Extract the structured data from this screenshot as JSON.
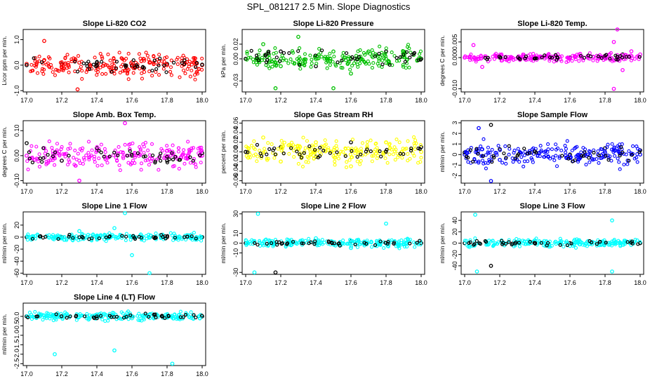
{
  "title": "SPL_081217  2.5 Min. Slope Diagnostics",
  "chart_data": [
    {
      "type": "scatter",
      "title": "Slope Li-820 CO2",
      "ylabel": "Licor ppm per min.",
      "xlim": [
        16.98,
        18.02
      ],
      "ylim": [
        -1.05,
        1.4
      ],
      "xticks": [
        "17.0",
        "17.2",
        "17.4",
        "17.6",
        "17.8",
        "18.0"
      ],
      "yticks": [
        {
          "v": -1,
          "label": "-1.0"
        },
        {
          "v": 0,
          "label": "0.0"
        },
        {
          "v": 1,
          "label": "1.0"
        }
      ],
      "series": [
        {
          "color": "#ff0000",
          "values": [
            [
              17.0,
              0.05
            ],
            [
              17.1,
              0.2
            ],
            [
              17.2,
              -0.1
            ],
            [
              17.3,
              0.1
            ],
            [
              17.4,
              0.0
            ],
            [
              17.5,
              0.15
            ],
            [
              17.6,
              -0.05
            ],
            [
              17.7,
              0.1
            ],
            [
              17.8,
              0.0
            ],
            [
              17.9,
              0.05
            ],
            [
              18.0,
              0.0
            ],
            [
              17.1,
              0.95
            ],
            [
              17.29,
              -0.95
            ]
          ]
        },
        {
          "color": "#000000",
          "values": [
            [
              17.0,
              0.0
            ],
            [
              17.2,
              0.05
            ],
            [
              17.4,
              0.1
            ],
            [
              17.6,
              0.0
            ],
            [
              17.8,
              0.05
            ],
            [
              18.0,
              0.02
            ]
          ]
        }
      ]
    },
    {
      "type": "scatter",
      "title": "Slope Li-820 Pressure",
      "ylabel": "kPa per min.",
      "xlim": [
        16.98,
        18.02
      ],
      "ylim": [
        -0.045,
        0.04
      ],
      "xticks": [
        "17.0",
        "17.2",
        "17.4",
        "17.6",
        "17.8",
        "18.0"
      ],
      "yticks": [
        {
          "v": -0.03,
          "label": "-0.03"
        },
        {
          "v": 0,
          "label": "0.00"
        },
        {
          "v": 0.02,
          "label": "0.02"
        }
      ],
      "series": [
        {
          "color": "#00c000",
          "values": [
            [
              17.0,
              0.0
            ],
            [
              17.1,
              0.02
            ],
            [
              17.2,
              -0.01
            ],
            [
              17.3,
              0.03
            ],
            [
              17.4,
              0.0
            ],
            [
              17.5,
              0.01
            ],
            [
              17.6,
              -0.02
            ],
            [
              17.7,
              0.01
            ],
            [
              17.8,
              0.0
            ],
            [
              17.9,
              0.01
            ],
            [
              18.0,
              0.0
            ],
            [
              17.17,
              -0.04
            ],
            [
              17.5,
              -0.04
            ]
          ]
        },
        {
          "color": "#000000",
          "values": [
            [
              17.0,
              0.0
            ],
            [
              17.2,
              0.01
            ],
            [
              17.4,
              -0.01
            ],
            [
              17.6,
              0.0
            ],
            [
              17.8,
              0.01
            ],
            [
              18.0,
              0.0
            ]
          ]
        }
      ]
    },
    {
      "type": "scatter",
      "title": "Slope Li-820 Temp.",
      "ylabel": "degrees C per min.",
      "xlim": [
        16.98,
        18.02
      ],
      "ylim": [
        -0.011,
        0.009
      ],
      "xticks": [
        "17.0",
        "17.2",
        "17.4",
        "17.6",
        "17.8",
        "18.0"
      ],
      "yticks": [
        {
          "v": -0.01,
          "label": "-0.010"
        },
        {
          "v": 0,
          "label": "0.000"
        },
        {
          "v": 0.005,
          "label": "0.005"
        }
      ],
      "series": [
        {
          "color": "#ff00ff",
          "values": [
            [
              17.0,
              0.0
            ],
            [
              17.05,
              0.004
            ],
            [
              17.1,
              -0.003
            ],
            [
              17.5,
              0.0
            ],
            [
              17.85,
              0.005
            ],
            [
              17.9,
              -0.004
            ],
            [
              17.95,
              0.002
            ],
            [
              18.0,
              0.001
            ],
            [
              17.87,
              0.009
            ],
            [
              17.85,
              -0.01
            ]
          ]
        },
        {
          "color": "#000000",
          "values": [
            [
              17.2,
              0.0
            ],
            [
              17.4,
              0.0
            ],
            [
              17.6,
              0.0
            ],
            [
              17.8,
              0.0
            ],
            [
              17.9,
              0.001
            ]
          ]
        }
      ]
    },
    {
      "type": "scatter",
      "title": "Slope Amb. Box Temp.",
      "ylabel": "degrees C per min.",
      "xlim": [
        16.98,
        18.02
      ],
      "ylim": [
        -0.11,
        0.14
      ],
      "xticks": [
        "17.0",
        "17.2",
        "17.4",
        "17.6",
        "17.8",
        "18.0"
      ],
      "yticks": [
        {
          "v": -0.1,
          "label": "-0.10"
        },
        {
          "v": 0,
          "label": "0.00"
        },
        {
          "v": 0.1,
          "label": "0.10"
        }
      ],
      "series": [
        {
          "color": "#ff00ff",
          "values": [
            [
              17.0,
              0.0
            ],
            [
              17.1,
              0.03
            ],
            [
              17.2,
              -0.02
            ],
            [
              17.4,
              0.02
            ],
            [
              17.6,
              -0.03
            ],
            [
              17.8,
              0.02
            ],
            [
              18.0,
              0.0
            ],
            [
              17.56,
              0.13
            ],
            [
              17.3,
              -0.1
            ]
          ]
        },
        {
          "color": "#000000",
          "values": [
            [
              17.0,
              0.05
            ],
            [
              17.2,
              -0.02
            ],
            [
              17.4,
              0.03
            ],
            [
              17.6,
              0.0
            ],
            [
              17.8,
              -0.02
            ],
            [
              18.0,
              0.01
            ]
          ]
        }
      ]
    },
    {
      "type": "scatter",
      "title": "Slope Gas Stream RH",
      "ylabel": "percent per min.",
      "xlim": [
        16.98,
        18.02
      ],
      "ylim": [
        -0.065,
        0.065
      ],
      "xticks": [
        "17.0",
        "17.2",
        "17.4",
        "17.6",
        "17.8",
        "18.0"
      ],
      "yticks": [
        {
          "v": -0.06,
          "label": "-0.06"
        },
        {
          "v": -0.04,
          "label": "-0.04"
        },
        {
          "v": -0.02,
          "label": "-0.02"
        },
        {
          "v": 0,
          "label": "0.00"
        },
        {
          "v": 0.02,
          "label": "0.02"
        },
        {
          "v": 0.04,
          "label": "0.04"
        },
        {
          "v": 0.06,
          "label": "0.06"
        }
      ],
      "series": [
        {
          "color": "#ffff00",
          "values": [
            [
              17.0,
              0.0
            ],
            [
              17.1,
              0.03
            ],
            [
              17.2,
              -0.02
            ],
            [
              17.4,
              0.02
            ],
            [
              17.6,
              -0.03
            ],
            [
              17.8,
              0.02
            ],
            [
              18.0,
              0.0
            ]
          ]
        },
        {
          "color": "#000000",
          "values": [
            [
              17.0,
              0.0
            ],
            [
              17.2,
              0.01
            ],
            [
              17.4,
              -0.01
            ],
            [
              17.6,
              0.02
            ],
            [
              17.8,
              0.0
            ],
            [
              18.0,
              0.01
            ]
          ]
        }
      ]
    },
    {
      "type": "scatter",
      "title": "Slope Sample Flow",
      "ylabel": "ml/min per min.",
      "xlim": [
        16.98,
        18.02
      ],
      "ylim": [
        -2.7,
        3.2
      ],
      "xticks": [
        "17.0",
        "17.2",
        "17.4",
        "17.6",
        "17.8",
        "18.0"
      ],
      "yticks": [
        {
          "v": -2,
          "label": "-2"
        },
        {
          "v": -1,
          "label": "-1"
        },
        {
          "v": 0,
          "label": "0"
        },
        {
          "v": 1,
          "label": "1"
        },
        {
          "v": 2,
          "label": "2"
        },
        {
          "v": 3,
          "label": "3"
        }
      ],
      "series": [
        {
          "color": "#0000ff",
          "values": [
            [
              17.0,
              0.0
            ],
            [
              17.1,
              0.5
            ],
            [
              17.2,
              -0.5
            ],
            [
              17.4,
              0.3
            ],
            [
              17.6,
              -0.3
            ],
            [
              17.8,
              0.2
            ],
            [
              18.0,
              0.0
            ],
            [
              17.08,
              2.5
            ],
            [
              17.15,
              -2.5
            ]
          ]
        },
        {
          "color": "#000000",
          "values": [
            [
              17.0,
              0.2
            ],
            [
              17.2,
              0.5
            ],
            [
              17.4,
              0.3
            ],
            [
              17.6,
              0.0
            ],
            [
              17.8,
              0.6
            ],
            [
              18.0,
              0.4
            ],
            [
              17.15,
              2.8
            ]
          ]
        }
      ]
    },
    {
      "type": "scatter",
      "title": "Slope Line 1 Flow",
      "ylabel": "ml/min per min.",
      "xlim": [
        16.98,
        18.02
      ],
      "ylim": [
        -62,
        42
      ],
      "xticks": [
        "17.0",
        "17.2",
        "17.4",
        "17.6",
        "17.8",
        "18.0"
      ],
      "yticks": [
        {
          "v": -60,
          "label": "-60"
        },
        {
          "v": -40,
          "label": "-40"
        },
        {
          "v": -20,
          "label": "-20"
        },
        {
          "v": 0,
          "label": "0"
        },
        {
          "v": 20,
          "label": "20"
        }
      ],
      "series": [
        {
          "color": "#00ffff",
          "values": [
            [
              17.0,
              0.0
            ],
            [
              17.3,
              10.0
            ],
            [
              17.5,
              15.0
            ],
            [
              17.56,
              40.0
            ],
            [
              17.6,
              -30.0
            ],
            [
              17.7,
              -60.0
            ],
            [
              18.0,
              0.0
            ]
          ]
        },
        {
          "color": "#000000",
          "values": [
            [
              17.0,
              0.0
            ],
            [
              17.2,
              0.0
            ],
            [
              17.4,
              0.0
            ],
            [
              17.6,
              0.0
            ],
            [
              17.8,
              0.0
            ],
            [
              18.0,
              0.0
            ]
          ]
        }
      ]
    },
    {
      "type": "scatter",
      "title": "Slope Line 2 Flow",
      "ylabel": "ml/min per min.",
      "xlim": [
        16.98,
        18.02
      ],
      "ylim": [
        -32,
        32
      ],
      "xticks": [
        "17.0",
        "17.2",
        "17.4",
        "17.6",
        "17.8",
        "18.0"
      ],
      "yticks": [
        {
          "v": -30,
          "label": "-30"
        },
        {
          "v": -10,
          "label": "-10"
        },
        {
          "v": 0,
          "label": "0"
        },
        {
          "v": 10,
          "label": "10"
        },
        {
          "v": 30,
          "label": "30"
        }
      ],
      "series": [
        {
          "color": "#00ffff",
          "values": [
            [
              17.0,
              0.0
            ],
            [
              17.07,
              30.0
            ],
            [
              17.05,
              -30.0
            ],
            [
              17.4,
              5.0
            ],
            [
              17.6,
              -5.0
            ],
            [
              17.8,
              20.0
            ],
            [
              18.0,
              0.0
            ]
          ]
        },
        {
          "color": "#000000",
          "values": [
            [
              17.0,
              0.0
            ],
            [
              17.17,
              -30.0
            ],
            [
              17.4,
              0.0
            ],
            [
              17.6,
              2.0
            ],
            [
              17.8,
              0.0
            ],
            [
              18.0,
              0.0
            ]
          ]
        }
      ]
    },
    {
      "type": "scatter",
      "title": "Slope Line 3 Flow",
      "ylabel": "ml/min per min.",
      "xlim": [
        16.98,
        18.02
      ],
      "ylim": [
        -55,
        55
      ],
      "xticks": [
        "17.0",
        "17.2",
        "17.4",
        "17.6",
        "17.8",
        "18.0"
      ],
      "yticks": [
        {
          "v": -40,
          "label": "-40"
        },
        {
          "v": -20,
          "label": "-20"
        },
        {
          "v": 0,
          "label": "0"
        },
        {
          "v": 20,
          "label": "20"
        },
        {
          "v": 40,
          "label": "40"
        }
      ],
      "series": [
        {
          "color": "#00ffff",
          "values": [
            [
              17.0,
              0.0
            ],
            [
              17.06,
              50.0
            ],
            [
              17.07,
              -50.0
            ],
            [
              17.4,
              5.0
            ],
            [
              17.6,
              -5.0
            ],
            [
              17.84,
              40.0
            ],
            [
              17.84,
              -50.0
            ],
            [
              18.0,
              0.0
            ]
          ]
        },
        {
          "color": "#000000",
          "values": [
            [
              17.0,
              0.0
            ],
            [
              17.15,
              -40.0
            ],
            [
              17.4,
              0.0
            ],
            [
              17.6,
              0.0
            ],
            [
              17.8,
              0.0
            ],
            [
              18.0,
              0.0
            ]
          ]
        }
      ]
    },
    {
      "type": "scatter",
      "title": "Slope Line 4 (LT) Flow",
      "ylabel": "ml/min per min.",
      "xlim": [
        16.98,
        18.02
      ],
      "ylim": [
        -2.6,
        0.7
      ],
      "xticks": [
        "17.0",
        "17.2",
        "17.4",
        "17.6",
        "17.8",
        "18.0"
      ],
      "yticks": [
        {
          "v": -2.5,
          "label": "-2.5"
        },
        {
          "v": -2,
          "label": "-2.0"
        },
        {
          "v": -1.5,
          "label": "-1.5"
        },
        {
          "v": -1,
          "label": "-1.0"
        },
        {
          "v": -0.5,
          "label": "-0.5"
        },
        {
          "v": 0,
          "label": "0.0"
        }
      ],
      "series": [
        {
          "color": "#00ffff",
          "values": [
            [
              17.0,
              0.0
            ],
            [
              17.16,
              -2.0
            ],
            [
              17.5,
              -1.8
            ],
            [
              17.83,
              -2.5
            ],
            [
              17.4,
              0.1
            ],
            [
              17.6,
              -0.1
            ],
            [
              18.0,
              0.0
            ]
          ]
        },
        {
          "color": "#000000",
          "values": [
            [
              17.0,
              0.0
            ],
            [
              17.2,
              0.0
            ],
            [
              17.4,
              0.0
            ],
            [
              17.6,
              0.0
            ],
            [
              17.8,
              0.0
            ],
            [
              18.0,
              0.0
            ]
          ]
        }
      ]
    }
  ]
}
